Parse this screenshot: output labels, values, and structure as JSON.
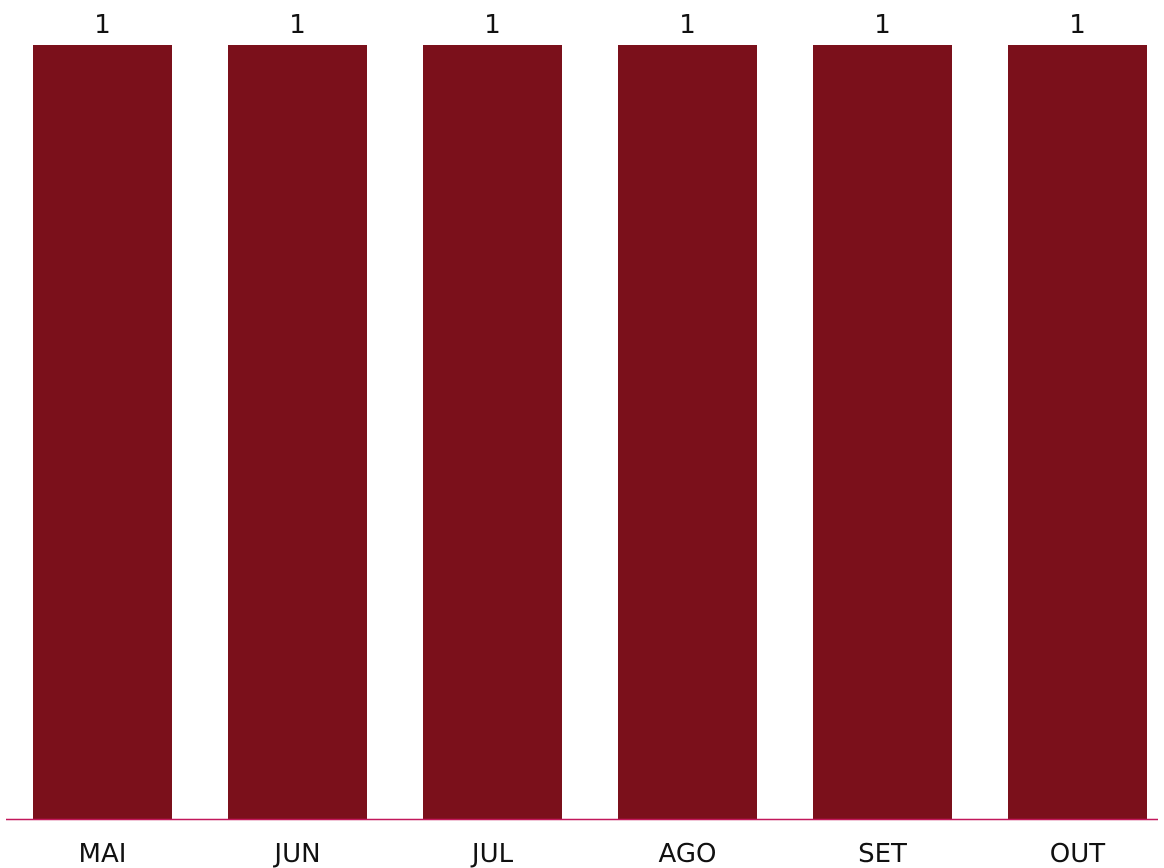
{
  "chart_data": {
    "type": "bar",
    "categories": [
      "MAI",
      "JUN",
      "JUL",
      "AGO",
      "SET",
      "OUT"
    ],
    "values": [
      1,
      1,
      1,
      1,
      1,
      1
    ],
    "data_labels": [
      "1",
      "1",
      "1",
      "1",
      "1",
      "1"
    ],
    "title": "",
    "xlabel": "",
    "ylabel": "",
    "ylim": [
      0,
      1
    ],
    "grid": false,
    "legend": "none",
    "colors": {
      "bar": "#7b101b",
      "baseline": "#c2185b",
      "text": "#111111",
      "background": "#ffffff"
    }
  }
}
